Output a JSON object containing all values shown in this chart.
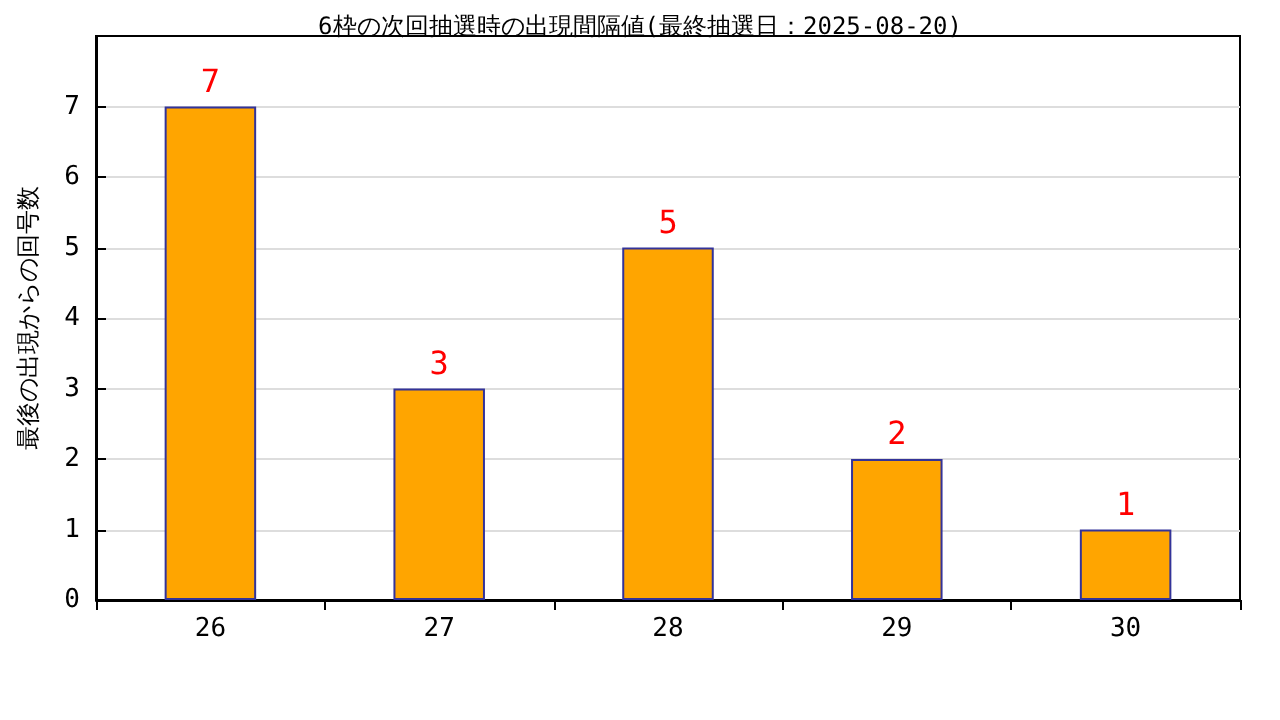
{
  "chart_data": {
    "type": "bar",
    "title": "6枠の次回抽選時の出現間隔値(最終抽選日：2025-08-20)",
    "ylabel": "最後の出現からの回号数",
    "categories": [
      "26",
      "27",
      "28",
      "29",
      "30"
    ],
    "values": [
      7,
      3,
      5,
      2,
      1
    ],
    "color": "#ffa500",
    "ylim": [
      0,
      8
    ],
    "yticks": [
      0,
      1,
      2,
      3,
      4,
      5,
      6,
      7
    ],
    "grid": "y",
    "data_labels": true
  }
}
